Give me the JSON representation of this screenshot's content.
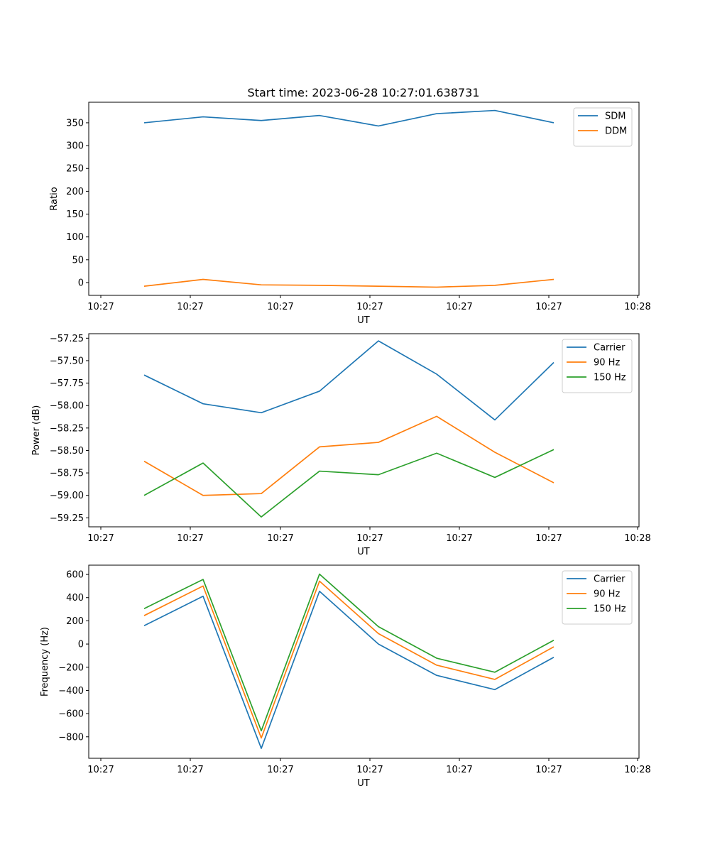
{
  "title": "Start time: 2023-06-28 10:27:01.638731",
  "colors": {
    "c0": "#1f77b4",
    "c1": "#ff7f0e",
    "c2": "#2ca02c"
  },
  "chart_data": [
    {
      "type": "line",
      "xlabel": "UT",
      "ylabel": "Ratio",
      "x_tick_labels": [
        "10:27",
        "10:27",
        "10:27",
        "10:27",
        "10:27",
        "10:27",
        "10:27",
        "10:28"
      ],
      "y_ticks": [
        "0",
        "50",
        "100",
        "150",
        "200",
        "250",
        "300",
        "350"
      ],
      "ylim": [
        -28,
        395
      ],
      "legend": "top-right",
      "series": [
        {
          "name": "SDM",
          "color": "#1f77b4",
          "values": [
            350,
            363,
            355,
            366,
            343,
            370,
            377,
            350
          ]
        },
        {
          "name": "DDM",
          "color": "#ff7f0e",
          "values": [
            -8,
            7,
            -5,
            -6,
            -8,
            -10,
            -6,
            7
          ]
        }
      ]
    },
    {
      "type": "line",
      "xlabel": "UT",
      "ylabel": "Power (dB)",
      "x_tick_labels": [
        "10:27",
        "10:27",
        "10:27",
        "10:27",
        "10:27",
        "10:27",
        "10:27",
        "10:28"
      ],
      "y_ticks": [
        "−59.25",
        "−59.00",
        "−58.75",
        "−58.50",
        "−58.25",
        "−58.00",
        "−57.75",
        "−57.50",
        "−57.25"
      ],
      "ylim": [
        -59.35,
        -57.2
      ],
      "legend": "top-right",
      "series": [
        {
          "name": "Carrier",
          "color": "#1f77b4",
          "values": [
            -57.66,
            -57.98,
            -58.08,
            -57.84,
            -57.28,
            -57.65,
            -58.16,
            -57.52
          ]
        },
        {
          "name": "90 Hz",
          "color": "#ff7f0e",
          "values": [
            -58.62,
            -59.0,
            -58.98,
            -58.46,
            -58.41,
            -58.12,
            -58.52,
            -58.86
          ]
        },
        {
          "name": "150 Hz",
          "color": "#2ca02c",
          "values": [
            -59.0,
            -58.64,
            -59.24,
            -58.73,
            -58.77,
            -58.53,
            -58.8,
            -58.49
          ]
        }
      ]
    },
    {
      "type": "line",
      "xlabel": "UT",
      "ylabel": "Frequency (Hz)",
      "x_tick_labels": [
        "10:27",
        "10:27",
        "10:27",
        "10:27",
        "10:27",
        "10:27",
        "10:27",
        "10:28"
      ],
      "y_ticks": [
        "−800",
        "−600",
        "−400",
        "−200",
        "0",
        "200",
        "400",
        "600"
      ],
      "ylim": [
        -985,
        680
      ],
      "legend": "top-right",
      "series": [
        {
          "name": "Carrier",
          "color": "#1f77b4",
          "values": [
            158,
            412,
            -900,
            455,
            0,
            -270,
            -393,
            -114
          ]
        },
        {
          "name": "90 Hz",
          "color": "#ff7f0e",
          "values": [
            245,
            500,
            -810,
            542,
            90,
            -182,
            -305,
            -24
          ]
        },
        {
          "name": "150 Hz",
          "color": "#2ca02c",
          "values": [
            305,
            557,
            -748,
            603,
            150,
            -122,
            -243,
            33
          ]
        }
      ]
    }
  ]
}
